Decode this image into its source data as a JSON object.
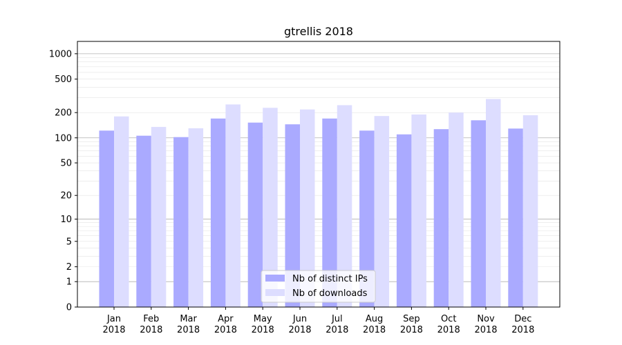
{
  "chart_data": {
    "type": "bar",
    "title": "gtrellis 2018",
    "xlabel": "",
    "ylabel": "",
    "y_scale": "log(1+y)",
    "ylim": [
      0,
      1400
    ],
    "y_ticks": [
      {
        "value": 0,
        "label": "0"
      },
      {
        "value": 1,
        "label": "1"
      },
      {
        "value": 2,
        "label": "2"
      },
      {
        "value": 5,
        "label": "5"
      },
      {
        "value": 10,
        "label": "10"
      },
      {
        "value": 20,
        "label": "20"
      },
      {
        "value": 50,
        "label": "50"
      },
      {
        "value": 100,
        "label": "100"
      },
      {
        "value": 200,
        "label": "200"
      },
      {
        "value": 500,
        "label": "500"
      },
      {
        "value": 1000,
        "label": "1000"
      }
    ],
    "grid": true,
    "legend_position": "bottom-center",
    "categories": [
      {
        "month": "Jan",
        "year": "2018"
      },
      {
        "month": "Feb",
        "year": "2018"
      },
      {
        "month": "Mar",
        "year": "2018"
      },
      {
        "month": "Apr",
        "year": "2018"
      },
      {
        "month": "May",
        "year": "2018"
      },
      {
        "month": "Jun",
        "year": "2018"
      },
      {
        "month": "Jul",
        "year": "2018"
      },
      {
        "month": "Aug",
        "year": "2018"
      },
      {
        "month": "Sep",
        "year": "2018"
      },
      {
        "month": "Oct",
        "year": "2018"
      },
      {
        "month": "Nov",
        "year": "2018"
      },
      {
        "month": "Dec",
        "year": "2018"
      }
    ],
    "series": [
      {
        "name": "Nb of distinct IPs",
        "color": "#aaaaff",
        "values": [
          122,
          106,
          102,
          170,
          152,
          145,
          170,
          122,
          110,
          127,
          162,
          129
        ]
      },
      {
        "name": "Nb of downloads",
        "color": "#ddddff",
        "values": [
          180,
          135,
          130,
          250,
          228,
          218,
          245,
          182,
          190,
          200,
          290,
          186
        ]
      }
    ]
  }
}
